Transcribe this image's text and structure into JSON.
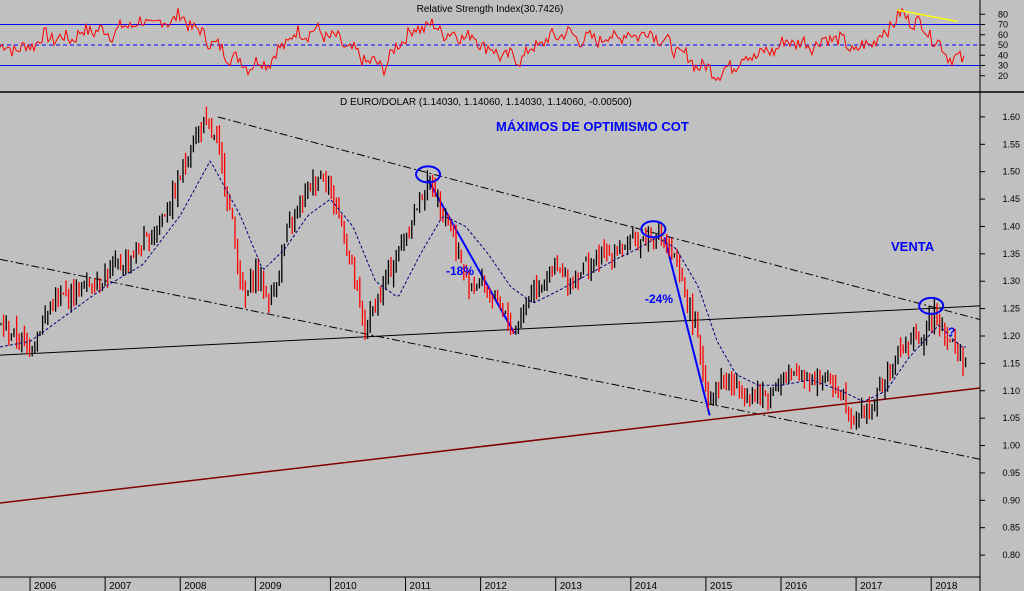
{
  "colors": {
    "background": "#c0c0c0",
    "rsi_line": "#ff0000",
    "rsi_levels": "#0000ff",
    "candle_up": "#000000",
    "candle_down": "#ff0000",
    "moving_average": "#000080",
    "trend_line": "#000000",
    "support_line": "#800000",
    "annotation": "#0000ff",
    "divergence": "#ffff00"
  },
  "chart_data": [
    {
      "type": "line",
      "title": "Relative Strength Index(30.7426)",
      "ylim": [
        10,
        90
      ],
      "yticks": [
        20,
        30,
        40,
        50,
        60,
        70,
        80
      ],
      "levels": [
        30,
        50,
        70
      ],
      "series": [
        {
          "x": [
            2005.6,
            2005.9,
            2006.2,
            2006.5,
            2006.8,
            2007.1,
            2007.4,
            2007.7,
            2008.0,
            2008.3,
            2008.6,
            2008.9,
            2009.2,
            2009.5,
            2009.8,
            2010.1,
            2010.4,
            2010.7,
            2011.0,
            2011.3,
            2011.6,
            2011.9,
            2012.2,
            2012.5,
            2012.8,
            2013.1,
            2013.4,
            2013.7,
            2014.0,
            2014.3,
            2014.6,
            2014.9,
            2015.2,
            2015.5,
            2015.8,
            2016.1,
            2016.4,
            2016.7,
            2017.0,
            2017.3,
            2017.6,
            2017.9,
            2018.2,
            2018.4
          ],
          "values": [
            48,
            46,
            58,
            56,
            65,
            62,
            72,
            70,
            78,
            60,
            42,
            30,
            35,
            60,
            64,
            55,
            38,
            28,
            60,
            70,
            60,
            58,
            42,
            36,
            52,
            62,
            55,
            57,
            60,
            62,
            45,
            30,
            22,
            38,
            42,
            54,
            50,
            58,
            44,
            57,
            80,
            68,
            42,
            34
          ]
        }
      ]
    },
    {
      "type": "candlestick",
      "title": "D EURO/DOLAR (1.14030, 1.14060, 1.14030, 1.14060, -0.00500)",
      "ylim": [
        0.76,
        1.64
      ],
      "yticks": [
        "1.60",
        "1.55",
        "1.50",
        "1.45",
        "1.40",
        "1.35",
        "1.30",
        "1.25",
        "1.20",
        "1.15",
        "1.10",
        "1.05",
        "1.00",
        "0.95",
        "0.90",
        "0.85",
        "0.80"
      ],
      "xticks": [
        "2006",
        "2007",
        "2008",
        "2009",
        "2010",
        "2011",
        "2012",
        "2013",
        "2014",
        "2015",
        "2016",
        "2017",
        "2018"
      ],
      "price_path": {
        "x": [
          2005.6,
          2005.8,
          2006.0,
          2006.3,
          2006.7,
          2007.0,
          2007.3,
          2007.6,
          2007.9,
          2008.15,
          2008.3,
          2008.5,
          2008.7,
          2008.85,
          2009.0,
          2009.2,
          2009.45,
          2009.7,
          2009.9,
          2010.1,
          2010.3,
          2010.45,
          2010.7,
          2010.9,
          2011.05,
          2011.25,
          2011.35,
          2011.6,
          2011.8,
          2012.0,
          2012.3,
          2012.45,
          2012.7,
          2013.0,
          2013.2,
          2013.4,
          2013.7,
          2014.0,
          2014.2,
          2014.35,
          2014.6,
          2014.85,
          2015.05,
          2015.2,
          2015.5,
          2015.8,
          2016.0,
          2016.3,
          2016.6,
          2016.8,
          2016.95,
          2017.2,
          2017.4,
          2017.6,
          2017.9,
          2018.05,
          2018.2,
          2018.4
        ],
        "values": [
          1.22,
          1.2,
          1.18,
          1.26,
          1.29,
          1.31,
          1.34,
          1.38,
          1.45,
          1.55,
          1.59,
          1.55,
          1.4,
          1.26,
          1.32,
          1.26,
          1.4,
          1.47,
          1.5,
          1.43,
          1.32,
          1.21,
          1.29,
          1.35,
          1.4,
          1.47,
          1.48,
          1.4,
          1.3,
          1.3,
          1.24,
          1.21,
          1.29,
          1.32,
          1.3,
          1.33,
          1.35,
          1.37,
          1.38,
          1.39,
          1.33,
          1.22,
          1.08,
          1.12,
          1.1,
          1.09,
          1.12,
          1.13,
          1.12,
          1.1,
          1.05,
          1.07,
          1.12,
          1.18,
          1.2,
          1.25,
          1.2,
          1.16
        ]
      },
      "moving_average": {
        "x": [
          2005.6,
          2006.0,
          2006.5,
          2007.0,
          2007.5,
          2008.0,
          2008.4,
          2008.8,
          2009.1,
          2009.4,
          2009.7,
          2010.0,
          2010.3,
          2010.6,
          2010.9,
          2011.2,
          2011.5,
          2011.8,
          2012.1,
          2012.4,
          2012.7,
          2013.0,
          2013.4,
          2013.8,
          2014.1,
          2014.35,
          2014.6,
          2014.9,
          2015.15,
          2015.4,
          2015.7,
          2016.0,
          2016.4,
          2016.8,
          2017.1,
          2017.4,
          2017.7,
          2017.9,
          2018.1,
          2018.4
        ],
        "values": [
          1.18,
          1.19,
          1.24,
          1.29,
          1.33,
          1.42,
          1.52,
          1.42,
          1.32,
          1.36,
          1.42,
          1.45,
          1.4,
          1.3,
          1.27,
          1.35,
          1.42,
          1.4,
          1.35,
          1.29,
          1.26,
          1.28,
          1.31,
          1.34,
          1.36,
          1.38,
          1.36,
          1.29,
          1.19,
          1.13,
          1.11,
          1.11,
          1.12,
          1.1,
          1.08,
          1.1,
          1.16,
          1.19,
          1.22,
          1.18
        ]
      },
      "trend_lines": [
        {
          "name": "resistance",
          "from": [
            2008.5,
            1.6
          ],
          "to": [
            2018.65,
            1.23
          ],
          "style": "dashdot"
        },
        {
          "name": "lower-channel",
          "from": [
            2005.6,
            1.34
          ],
          "to": [
            2018.65,
            0.975
          ],
          "style": "dashdot"
        },
        {
          "name": "neckline",
          "from": [
            2005.6,
            1.165
          ],
          "to": [
            2018.65,
            1.255
          ],
          "style": "solid"
        },
        {
          "name": "long-term-support",
          "from": [
            2005.6,
            0.895
          ],
          "to": [
            2018.65,
            1.105
          ],
          "style": "solid"
        },
        {
          "name": "decline-2011",
          "from": [
            2011.3,
            1.485
          ],
          "to": [
            2012.45,
            1.205
          ],
          "style": "solid"
        },
        {
          "name": "decline-2014",
          "from": [
            2014.45,
            1.38
          ],
          "to": [
            2015.05,
            1.055
          ],
          "style": "solid"
        }
      ],
      "markers": [
        {
          "x": 2011.3,
          "y": 1.495
        },
        {
          "x": 2014.3,
          "y": 1.395
        },
        {
          "x": 2018.0,
          "y": 1.255
        }
      ],
      "annotations": {
        "optimism": "MÁXIMOS DE OPTIMISMO COT",
        "drop1": "-18%",
        "drop2": "-24%",
        "sell": "VENTA",
        "question": "?"
      }
    }
  ]
}
